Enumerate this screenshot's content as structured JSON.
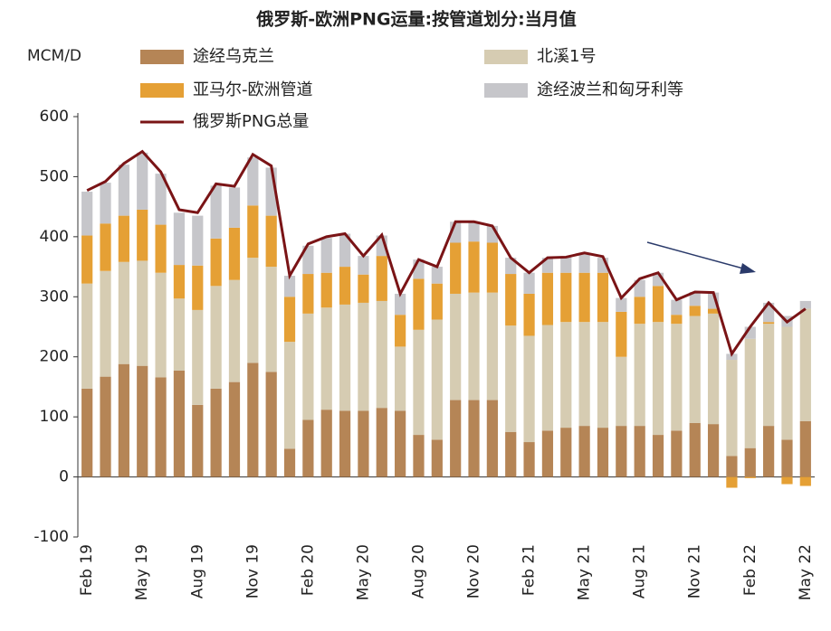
{
  "chart_data": {
    "type": "bar",
    "stacked": true,
    "title": "俄罗斯-欧洲PNG运量:按管道划分:当月值",
    "y_label": "MCM/D",
    "categories": [
      "Feb 19",
      null,
      null,
      "May 19",
      null,
      null,
      "Aug 19",
      null,
      null,
      "Nov 19",
      null,
      null,
      "Feb 20",
      null,
      null,
      "May 20",
      null,
      null,
      "Aug 20",
      null,
      null,
      "Nov 20",
      null,
      null,
      "Feb 21",
      null,
      null,
      "May 21",
      null,
      null,
      "Aug 21",
      null,
      null,
      "Nov 21",
      null,
      null,
      "Feb 22",
      null,
      null,
      "May 22"
    ],
    "series": [
      {
        "name": "途经乌克兰",
        "color": "#b58556",
        "values": [
          147,
          167,
          188,
          185,
          166,
          177,
          120,
          147,
          158,
          190,
          175,
          47,
          95,
          112,
          110,
          110,
          115,
          110,
          70,
          62,
          128,
          128,
          128,
          75,
          58,
          77,
          82,
          85,
          82,
          85,
          85,
          70,
          77,
          90,
          88,
          35,
          48,
          85,
          62,
          93
        ]
      },
      {
        "name": "北溪1号",
        "color": "#d6ccb2",
        "values": [
          175,
          176,
          170,
          175,
          174,
          120,
          158,
          171,
          170,
          175,
          175,
          178,
          177,
          170,
          177,
          180,
          178,
          107,
          175,
          200,
          177,
          179,
          179,
          177,
          177,
          176,
          176,
          173,
          176,
          115,
          170,
          188,
          178,
          178,
          184,
          160,
          182,
          170,
          188,
          187
        ]
      },
      {
        "name": "亚马尔-欧洲管道",
        "color": "#e5a035",
        "values": [
          80,
          79,
          77,
          85,
          80,
          56,
          74,
          79,
          87,
          87,
          85,
          75,
          66,
          58,
          63,
          47,
          75,
          53,
          85,
          60,
          85,
          85,
          83,
          86,
          70,
          87,
          82,
          82,
          82,
          75,
          45,
          60,
          15,
          17,
          8,
          -18,
          -2,
          3,
          -12,
          -15
        ]
      },
      {
        "name": "途经波兰和匈牙利等",
        "color": "#c6c6ca",
        "values": [
          73,
          68,
          85,
          95,
          85,
          87,
          83,
          88,
          67,
          80,
          80,
          35,
          47,
          58,
          55,
          31,
          34,
          35,
          32,
          28,
          35,
          33,
          28,
          27,
          35,
          25,
          26,
          33,
          25,
          23,
          28,
          22,
          25,
          23,
          27,
          10,
          20,
          32,
          18,
          13
        ]
      },
      {
        "name": "俄罗斯PNG总量",
        "type": "line",
        "color": "#7a1416",
        "values": [
          477,
          492,
          522,
          542,
          508,
          445,
          440,
          488,
          484,
          537,
          518,
          335,
          388,
          400,
          405,
          368,
          403,
          305,
          362,
          350,
          425,
          425,
          418,
          365,
          340,
          365,
          366,
          373,
          367,
          298,
          330,
          340,
          295,
          308,
          307,
          205,
          250,
          290,
          258,
          280
        ]
      }
    ],
    "ylim": [
      -100,
      600
    ],
    "yticks": [
      -100,
      0,
      100,
      200,
      300,
      400,
      500,
      600
    ]
  }
}
